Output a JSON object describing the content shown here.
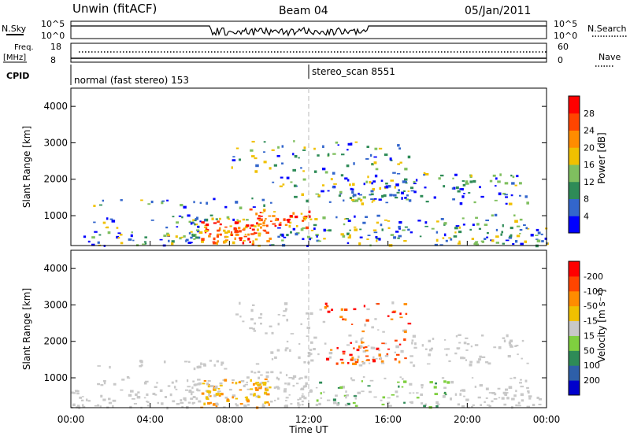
{
  "header": {
    "station": "Unwin (fitACF)",
    "beam": "Beam 04",
    "date": "05/Jan/2011"
  },
  "top_panels": {
    "nsky_label": "N.Sky",
    "nsky_ticks": [
      "10^5",
      "10^0"
    ],
    "nsearch_label": "N.Search",
    "nsearch_ticks": [
      "10^5",
      "10^0"
    ],
    "freq_label_1": "Freq.",
    "freq_label_2": "[MHz]",
    "freq_ticks": [
      "18",
      "8"
    ],
    "nave_label": "Nave",
    "nave_ticks": [
      "60",
      "0"
    ],
    "cpid_label": "CPID",
    "cpid_1": "normal (fast stereo) 153",
    "cpid_2": "stereo_scan 8551"
  },
  "chart_data": [
    {
      "type": "heatmap",
      "title": "",
      "quantity": "Power",
      "ylabel": "Slant Range [km]",
      "yticks": [
        "1000",
        "2000",
        "3000",
        "4000"
      ],
      "ylim": [
        180,
        4500
      ],
      "colorbar_label": "Power [dB]",
      "colorbar_ticks": [
        "4",
        "8",
        "12",
        "16",
        "20",
        "24",
        "28"
      ],
      "colors": [
        "#0000ff",
        "#3366cc",
        "#2e8b57",
        "#7fbf5f",
        "#f0c000",
        "#ff8c00",
        "#ff4500",
        "#ff0000"
      ],
      "x_range_hours": [
        0,
        24
      ]
    },
    {
      "type": "heatmap",
      "title": "",
      "quantity": "Velocity",
      "ylabel": "Slant Range [km]",
      "yticks": [
        "1000",
        "2000",
        "3000",
        "4000"
      ],
      "ylim": [
        180,
        4500
      ],
      "colorbar_label": "Velocity [m s⁻¹]",
      "colorbar_ticks": [
        "200",
        "100",
        "50",
        "15",
        "-15",
        "-50",
        "-100",
        "-200"
      ],
      "colors": [
        "#0000cc",
        "#2e5fa8",
        "#2e8b57",
        "#7fcf3f",
        "#c8c8c8",
        "#f0c000",
        "#ff8c00",
        "#ff4500",
        "#ff0000"
      ],
      "x_range_hours": [
        0,
        24
      ]
    }
  ],
  "x_axis": {
    "label": "Time UT",
    "ticks": [
      "00:00",
      "04:00",
      "08:00",
      "12:00",
      "16:00",
      "20:00",
      "00:00"
    ]
  }
}
